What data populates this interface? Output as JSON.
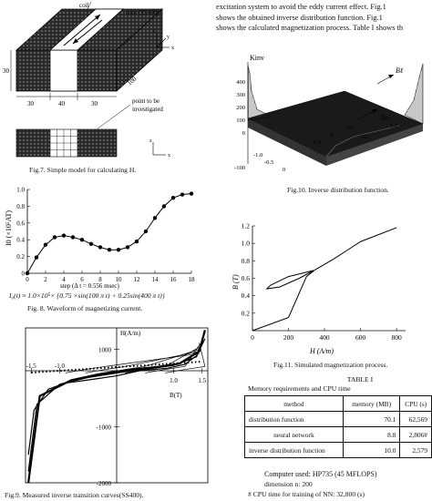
{
  "body_text": {
    "line1": "excitation system to avoid the eddy current effect. Fig.1",
    "line2": "shows the obtained inverse distribution function. Fig.1",
    "line3": "shows the calculated magnetization process. Table I shows th"
  },
  "fig7": {
    "caption": "Fig.7.  Simple model for calculating H.",
    "label_coil": "coil",
    "label_core": "core (SS400)",
    "label_point": "point to be\ninvestigated",
    "dim_30_side": "30",
    "dim_30_left": "30",
    "dim_40": "40",
    "dim_30_right": "30",
    "dim_100": "100",
    "axis_z": "z",
    "axis_y": "y",
    "axis_x": "x",
    "axis_z2": "z",
    "axis_x2": "x"
  },
  "fig8": {
    "caption": "Fig. 8.  Waveform of magnetizing current.",
    "formula": "I0(t) = 1.0×10^5× {0.75 ×sin(100 π t) + 0.25sin(400 π t)}",
    "formula_display": "I₀(t) ≈ 1.0×10⁵× {0.75 ×sin(100 π t) + 0.25sin(400 π t)}",
    "xlabel": "step (Δ t = 0.556 msec)",
    "ylabel": "I0 (×10⁵AT)"
  },
  "fig9": {
    "caption": "Fig.9. Measured inverse transition curves(SS400).",
    "ylabel": "H(A/m)",
    "xlabel": "B(T)"
  },
  "fig10": {
    "caption": "Fig.10. Inverse distribution function.",
    "zlabel": "Kinv",
    "blabel": "Bℓ",
    "bulabel": "Bu"
  },
  "fig11": {
    "caption": "Fig.11. Simulated magnetization process.",
    "ylabel": "B (T)",
    "xlabel": "H (A/m)"
  },
  "table1": {
    "title": "TABLE I",
    "subtitle": "Memory requirements and CPU time",
    "headers": [
      "method",
      "memory (MB)",
      "CPU (s)"
    ],
    "rows": [
      [
        "distribution function",
        "70.1",
        "62,569"
      ],
      [
        "neural network",
        "8.8",
        "2,806#"
      ],
      [
        "inverse distribution function",
        "10.0",
        "2,579"
      ]
    ],
    "note1": "Computer used: HP735 (45 MFLOPS)",
    "note2": "dimension n: 200",
    "note3": "# CPU time for training of NN: 32,800 (s)"
  },
  "chart_data": [
    {
      "type": "line",
      "id": "fig8",
      "xlabel": "step (Δ t = 0.556 msec)",
      "ylabel": "I0 (×10⁵AT)",
      "xlim": [
        0,
        18
      ],
      "ylim": [
        0,
        1.0
      ],
      "xticks": [
        0,
        2,
        4,
        6,
        8,
        10,
        12,
        14,
        16,
        18
      ],
      "yticks": [
        0,
        0.2,
        0.4,
        0.6,
        0.8,
        1.0
      ],
      "x": [
        0,
        1,
        2,
        3,
        4,
        5,
        6,
        7,
        8,
        9,
        10,
        11,
        12,
        13,
        14,
        15,
        16,
        17,
        18
      ],
      "y": [
        0,
        0.19,
        0.34,
        0.43,
        0.45,
        0.43,
        0.4,
        0.35,
        0.31,
        0.28,
        0.28,
        0.31,
        0.38,
        0.5,
        0.66,
        0.8,
        0.9,
        0.94,
        0.95
      ]
    },
    {
      "type": "line",
      "id": "fig9",
      "xlabel": "B(T)",
      "ylabel": "H(A/m)",
      "xlim": [
        -1.6,
        1.6
      ],
      "ylim": [
        -2000,
        2000
      ],
      "xticks": [
        -1.5,
        -1.0,
        1.0,
        1.5
      ],
      "xtick_labels": [
        "-1.5",
        "-1.0",
        "1.0",
        "1.5"
      ],
      "yticks": [
        -2000,
        -1000,
        1000
      ],
      "ytick_labels": [
        "-2000",
        "-1000",
        "1000"
      ],
      "series": [
        {
          "points": [
            [
              -1.55,
              -1500
            ],
            [
              -1.45,
              -700
            ],
            [
              -1.2,
              -330
            ],
            [
              -0.9,
              -220
            ],
            [
              -0.4,
              -150
            ],
            [
              0,
              -90
            ],
            [
              0.4,
              0
            ],
            [
              0.9,
              120
            ],
            [
              1.2,
              300
            ],
            [
              1.4,
              700
            ],
            [
              1.55,
              1800
            ]
          ]
        },
        {
          "points": [
            [
              -1.55,
              -1800
            ],
            [
              -1.4,
              -600
            ],
            [
              -1.0,
              -240
            ],
            [
              -0.5,
              -120
            ],
            [
              0,
              -40
            ],
            [
              0.5,
              70
            ],
            [
              1.0,
              250
            ],
            [
              1.4,
              650
            ],
            [
              1.55,
              1500
            ]
          ]
        },
        {
          "points": [
            [
              -1.55,
              -2000
            ],
            [
              -1.35,
              -450
            ],
            [
              -0.8,
              -170
            ],
            [
              -0.3,
              -60
            ],
            [
              0.2,
              40
            ],
            [
              0.7,
              170
            ],
            [
              1.1,
              330
            ],
            [
              1.45,
              900
            ],
            [
              1.55,
              1900
            ]
          ]
        }
      ]
    },
    {
      "type": "line",
      "id": "fig11",
      "xlabel": "H (A/m)",
      "ylabel": "B (T)",
      "xlim": [
        0,
        850
      ],
      "ylim": [
        0,
        1.2
      ],
      "xticks": [
        0,
        200,
        400,
        600,
        800
      ],
      "yticks": [
        0.2,
        0.4,
        0.6,
        0.8,
        1.0,
        1.2
      ],
      "series": [
        {
          "name": "",
          "points": [
            [
              0,
              0
            ],
            [
              200,
              0.15
            ],
            [
              300,
              0.62
            ],
            [
              350,
              0.7
            ],
            [
              450,
              0.82
            ],
            [
              600,
              1.02
            ],
            [
              800,
              1.18
            ]
          ]
        },
        {
          "name": "",
          "points": [
            [
              340,
              0.69
            ],
            [
              200,
              0.62
            ],
            [
              100,
              0.52
            ],
            [
              80,
              0.48
            ],
            [
              150,
              0.5
            ],
            [
              260,
              0.6
            ],
            [
              340,
              0.69
            ]
          ]
        }
      ]
    }
  ]
}
